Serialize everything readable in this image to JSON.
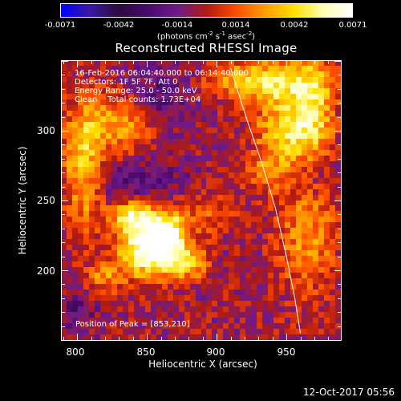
{
  "colorbar": {
    "tick_labels": [
      "-0.0071",
      "-0.0042",
      "-0.0014",
      "0.0014",
      "0.0042",
      "0.0071"
    ],
    "units_main": "(photons cm",
    "units_exp1": "-2",
    "units_s": " s",
    "units_exp2": "-1",
    "units_asec": " asec",
    "units_exp3": "-2",
    "units_close": ")",
    "colors": [
      "#0000ff",
      "#3a1aa0",
      "#2d0a3c",
      "#4a0a6e",
      "#6f1a8a",
      "#b01a12",
      "#ff4a00",
      "#ff9e00",
      "#ffe000",
      "#ffffb0",
      "#ffffff"
    ]
  },
  "title": "Reconstructed RHESSI Image",
  "info": {
    "line1": "16-Feb-2016 06:04:40.000 to 06:14:40.000",
    "line2": "Detectors: 1F 5F 7F, Att 0",
    "line3": "Energy Range: 25.0 - 50.0 keV",
    "line4": "Clean    Total counts: 1.73E+04",
    "peak": "Position of Peak = [853,210]"
  },
  "footer": {
    "date": "12-Oct-2017 05:56"
  },
  "chart_data": {
    "type": "heatmap",
    "title": "Reconstructed RHESSI Image",
    "xlabel": "Heliocentric X (arcsec)",
    "ylabel": "Heliocentric Y (arcsec)",
    "xlim": [
      789,
      989
    ],
    "ylim": [
      150,
      350
    ],
    "xticks": [
      800,
      850,
      900,
      950
    ],
    "yticks": [
      200,
      250,
      300
    ],
    "colorbar_range": [
      -0.0071,
      0.0071
    ],
    "colorbar_units": "photons cm^-2 s^-1 asec^-2",
    "grid_resolution": 50,
    "peak_position": [
      853,
      210
    ],
    "solar_limb": [
      [
        910,
        345
      ],
      [
        921,
        310
      ],
      [
        932,
        278
      ],
      [
        942,
        245
      ],
      [
        950,
        210
      ],
      [
        956,
        180
      ],
      [
        960,
        155
      ]
    ],
    "sources": [
      {
        "x": 850,
        "y": 215,
        "sigma_x": 14,
        "sigma_y": 14,
        "amp": 0.0071
      },
      {
        "x": 865,
        "y": 225,
        "sigma_x": 10,
        "sigma_y": 12,
        "amp": 0.006
      },
      {
        "x": 840,
        "y": 238,
        "sigma_x": 10,
        "sigma_y": 8,
        "amp": 0.005
      },
      {
        "x": 880,
        "y": 205,
        "sigma_x": 10,
        "sigma_y": 8,
        "amp": 0.0045
      },
      {
        "x": 805,
        "y": 275,
        "sigma_x": 10,
        "sigma_y": 30,
        "amp": 0.0045
      },
      {
        "x": 835,
        "y": 305,
        "sigma_x": 20,
        "sigma_y": 15,
        "amp": 0.0035
      },
      {
        "x": 895,
        "y": 240,
        "sigma_x": 14,
        "sigma_y": 10,
        "amp": 0.002
      },
      {
        "x": 820,
        "y": 195,
        "sigma_x": 10,
        "sigma_y": 8,
        "amp": 0.0025
      },
      {
        "x": 935,
        "y": 335,
        "sigma_x": 25,
        "sigma_y": 10,
        "amp": 0.005
      },
      {
        "x": 950,
        "y": 300,
        "sigma_x": 15,
        "sigma_y": 20,
        "amp": 0.0045
      },
      {
        "x": 970,
        "y": 315,
        "sigma_x": 10,
        "sigma_y": 25,
        "amp": 0.004
      },
      {
        "x": 965,
        "y": 225,
        "sigma_x": 15,
        "sigma_y": 30,
        "amp": 0.003
      },
      {
        "x": 935,
        "y": 270,
        "sigma_x": 12,
        "sigma_y": 10,
        "amp": 0.0018
      },
      {
        "x": 840,
        "y": 265,
        "sigma_x": 25,
        "sigma_y": 10,
        "amp": -0.002
      },
      {
        "x": 860,
        "y": 320,
        "sigma_x": 15,
        "sigma_y": 20,
        "amp": -0.0025
      },
      {
        "x": 800,
        "y": 170,
        "sigma_x": 10,
        "sigma_y": 10,
        "amp": -0.0018
      },
      {
        "x": 970,
        "y": 270,
        "sigma_x": 12,
        "sigma_y": 12,
        "amp": -0.0015
      }
    ]
  }
}
